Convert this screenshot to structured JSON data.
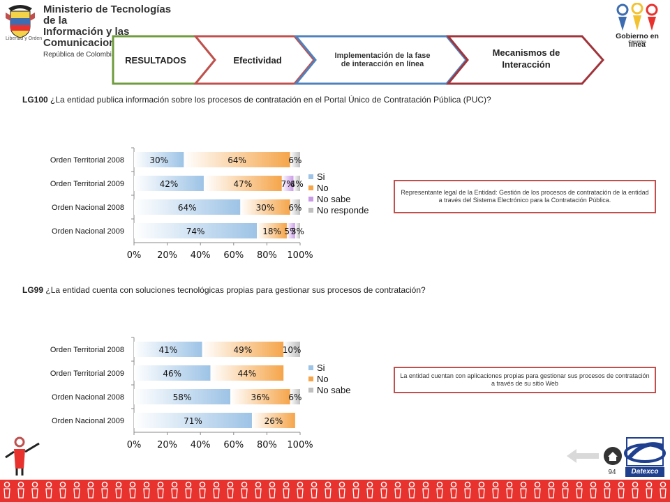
{
  "header": {
    "ministry_line1": "Ministerio de Tecnologías de la",
    "ministry_line2": "Información y las Comunicaciones",
    "ministry_line3": "República de Colombia",
    "coat_caption": "Libertad y Orden",
    "gobierno_logo_text": "Gobierno en línea",
    "gobierno_logo_sub": "Colombia"
  },
  "nav": {
    "tab1": "RESULTADOS",
    "tab2": "Efectividad",
    "tab3_line1": "Implementación de la fase",
    "tab3_line2": "de interacción en línea",
    "tab4_line1": "Mecanismos de",
    "tab4_line2": "Interacción"
  },
  "colors": {
    "si": "#9dc3e6",
    "no": "#f5a54a",
    "no_sabe": "#c99be6",
    "no_responde": "#bfbfbf",
    "tab1_border": "#6f9c3c",
    "tab2_border": "#c0504d",
    "tab3_border": "#4f81bd",
    "tab4_border": "#a0343a",
    "footer": "#e8322e"
  },
  "q1": {
    "code": "LG100",
    "text": "¿La entidad publica información sobre los procesos de contratación en el  Portal Único de Contratación Pública (PUC)?",
    "note": "Representante legal de la Entidad: Gestión de  los procesos de contratación de la entidad a través del Sistema Electrónico para la Contratación Pública."
  },
  "q2": {
    "code": "LG99",
    "text": "¿La entidad cuenta con soluciones tecnológicas propias para gestionar sus procesos de contratación?",
    "note": "La entidad cuentan con aplicaciones propias para gestionar sus procesos de contratación a través de su sitio Web"
  },
  "chart_data": [
    {
      "type": "bar",
      "orientation": "horizontal",
      "stacked": true,
      "categories": [
        "Orden Territorial 2008",
        "Orden Territorial 2009",
        "Orden Nacional 2008",
        "Orden Nacional 2009"
      ],
      "series": [
        {
          "name": "Si",
          "values": [
            30,
            42,
            64,
            74
          ],
          "color": "#9dc3e6"
        },
        {
          "name": "No",
          "values": [
            64,
            47,
            30,
            18
          ],
          "color": "#f5a54a"
        },
        {
          "name": "No sabe",
          "values": [
            0,
            7,
            0,
            5
          ],
          "color": "#c99be6"
        },
        {
          "name": "No responde",
          "values": [
            6,
            4,
            6,
            3
          ],
          "color": "#bfbfbf"
        }
      ],
      "data_labels": [
        [
          "30%",
          "64%",
          "",
          "6%"
        ],
        [
          "42%",
          "47%",
          "7%",
          "4%"
        ],
        [
          "64%",
          "30%",
          "",
          "6%"
        ],
        [
          "74%",
          "18%",
          "5%",
          "3%"
        ]
      ],
      "x_ticks": [
        "0%",
        "20%",
        "40%",
        "60%",
        "80%",
        "100%"
      ],
      "xlim": [
        0,
        100
      ],
      "legend_position": "right"
    },
    {
      "type": "bar",
      "orientation": "horizontal",
      "stacked": true,
      "categories": [
        "Orden Territorial 2008",
        "Orden Territorial 2009",
        "Orden Nacional 2008",
        "Orden Nacional 2009"
      ],
      "series": [
        {
          "name": "Si",
          "values": [
            41,
            46,
            58,
            71
          ],
          "color": "#9dc3e6"
        },
        {
          "name": "No",
          "values": [
            49,
            44,
            36,
            26
          ],
          "color": "#f5a54a"
        },
        {
          "name": "No sabe",
          "values": [
            10,
            0,
            6,
            0
          ],
          "color": "#bfbfbf"
        }
      ],
      "data_labels": [
        [
          "41%",
          "49%",
          "10%"
        ],
        [
          "46%",
          "44%",
          ""
        ],
        [
          "58%",
          "36%",
          "6%"
        ],
        [
          "71%",
          "26%",
          ""
        ]
      ],
      "x_ticks": [
        "0%",
        "20%",
        "40%",
        "60%",
        "80%",
        "100%"
      ],
      "xlim": [
        0,
        100
      ],
      "legend_position": "right"
    }
  ],
  "footer": {
    "page_number": "94",
    "datexco_label": "Datexco"
  }
}
